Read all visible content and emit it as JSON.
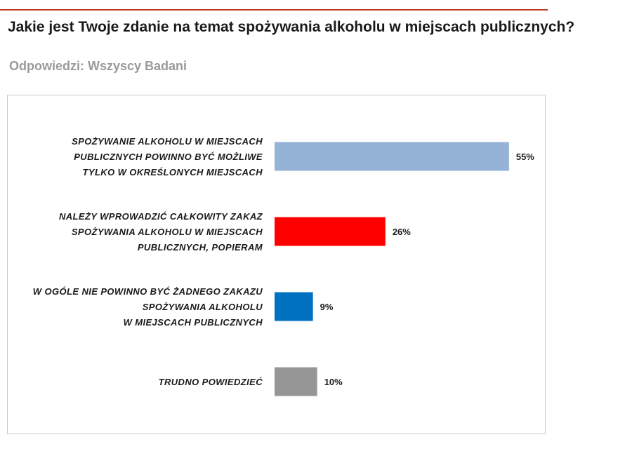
{
  "header": {
    "title": "Jakie jest Twoje zdanie na temat spożywania alkoholu w miejscach publicznych?",
    "subtitle": "Odpowiedzi: Wszyscy Badani"
  },
  "chart_data": {
    "type": "bar",
    "orientation": "horizontal",
    "categories": [
      [
        "SPOŻYWANIE ALKOHOLU W MIEJSCACH",
        "PUBLICZNYCH POWINNO BYĆ MOŻLIWE",
        "TYLKO W OKREŚLONYCH MIEJSCACH"
      ],
      [
        "NALEŻY WPROWADZIĆ CAŁKOWITY ZAKAZ",
        "SPOŻYWANIA ALKOHOLU W MIEJSCACH",
        "PUBLICZNYCH, POPIERAM"
      ],
      [
        "W OGÓLE NIE POWINNO BYĆ ŻADNEGO ZAKAZU",
        "SPOŻYWANIA ALKOHOLU",
        "W MIEJSCACH PUBLICZNYCH"
      ],
      [
        "TRUDNO POWIEDZIEĆ"
      ]
    ],
    "values": [
      55,
      26,
      9,
      10
    ],
    "value_labels": [
      "55%",
      "26%",
      "9%",
      "10%"
    ],
    "colors": [
      "#95b3d7",
      "#ff0000",
      "#0070c0",
      "#969696"
    ],
    "xlim": [
      0,
      60
    ],
    "grid": false,
    "legend": "none"
  }
}
